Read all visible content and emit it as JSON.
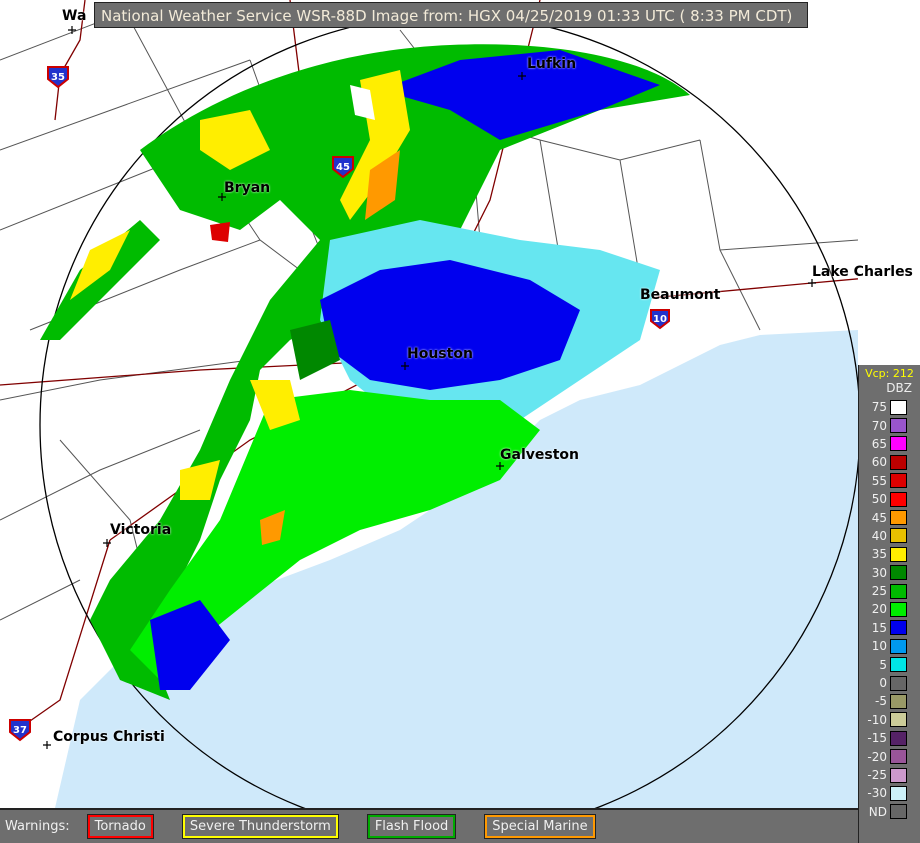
{
  "header": {
    "title": "National Weather Service WSR-88D Image from: HGX 04/25/2019 01:33 UTC ( 8:33 PM CDT)"
  },
  "cities": [
    {
      "name": "Wa"
    },
    {
      "name": "Lufkin"
    },
    {
      "name": "Bryan"
    },
    {
      "name": "Lake Charles"
    },
    {
      "name": "Beaumont"
    },
    {
      "name": "Houston"
    },
    {
      "name": "Galveston"
    },
    {
      "name": "Victoria"
    },
    {
      "name": "Corpus Christi"
    }
  ],
  "interstates": [
    "35",
    "45",
    "10",
    "37"
  ],
  "legend": {
    "vcp": "Vcp: 212",
    "unit": "DBZ",
    "items": [
      {
        "label": "75",
        "color": "#ffffff"
      },
      {
        "label": "70",
        "color": "#9955cc"
      },
      {
        "label": "65",
        "color": "#ff00ff"
      },
      {
        "label": "60",
        "color": "#bb0000"
      },
      {
        "label": "55",
        "color": "#dd0000"
      },
      {
        "label": "50",
        "color": "#ff0000"
      },
      {
        "label": "45",
        "color": "#ff9900"
      },
      {
        "label": "40",
        "color": "#e8c000"
      },
      {
        "label": "35",
        "color": "#ffee00"
      },
      {
        "label": "30",
        "color": "#008800"
      },
      {
        "label": "25",
        "color": "#00bb00"
      },
      {
        "label": "20",
        "color": "#00ee00"
      },
      {
        "label": "15",
        "color": "#0000ee"
      },
      {
        "label": "10",
        "color": "#0099ee"
      },
      {
        "label": "5",
        "color": "#00e6e6"
      },
      {
        "label": "0",
        "color": "#666666"
      },
      {
        "label": "-5",
        "color": "#999966"
      },
      {
        "label": "-10",
        "color": "#cccc99"
      },
      {
        "label": "-15",
        "color": "#552266"
      },
      {
        "label": "-20",
        "color": "#995599"
      },
      {
        "label": "-25",
        "color": "#cc99cc"
      },
      {
        "label": "-30",
        "color": "#ccf0f8"
      },
      {
        "label": "ND",
        "color": "#666666"
      }
    ]
  },
  "warnings": {
    "label": "Warnings:",
    "items": [
      {
        "label": "Tornado",
        "color": "#ff0000"
      },
      {
        "label": "Severe Thunderstorm",
        "color": "#ffff00"
      },
      {
        "label": "Flash Flood",
        "color": "#00aa00"
      },
      {
        "label": "Special Marine",
        "color": "#ff9900"
      }
    ]
  }
}
